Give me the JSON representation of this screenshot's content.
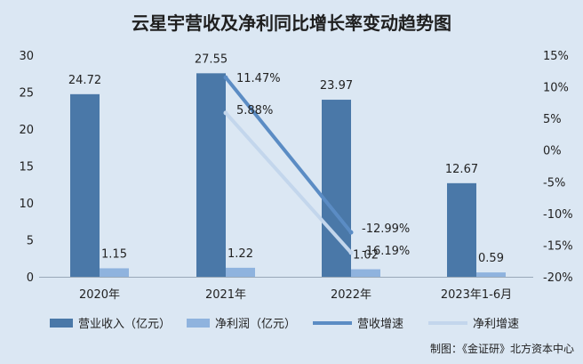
{
  "chart_data": {
    "type": "bar",
    "title": "云星宇营收及净利同比增长率变动趋势图",
    "categories": [
      "2020年",
      "2021年",
      "2022年",
      "2023年1-6月"
    ],
    "series": [
      {
        "name": "营业收入（亿元）",
        "kind": "bar",
        "axis": "left",
        "color": "#4a78a8",
        "values": [
          24.72,
          27.55,
          23.97,
          12.67
        ]
      },
      {
        "name": "净利润（亿元）",
        "kind": "bar",
        "axis": "left",
        "color": "#8fb3de",
        "values": [
          1.15,
          1.22,
          1.02,
          0.59
        ]
      },
      {
        "name": "营收增速",
        "kind": "line",
        "axis": "right",
        "color": "#5b8cc4",
        "values": [
          null,
          11.47,
          -12.99,
          null
        ]
      },
      {
        "name": "净利增速",
        "kind": "line",
        "axis": "right",
        "color": "#c3d6ec",
        "values": [
          null,
          5.88,
          -16.19,
          null
        ]
      }
    ],
    "data_labels": {
      "revenue": [
        "24.72",
        "27.55",
        "23.97",
        "12.67"
      ],
      "profit": [
        "1.15",
        "1.22",
        "1.02",
        "0.59"
      ],
      "revenue_growth": [
        "11.47%",
        "-12.99%"
      ],
      "profit_growth": [
        "5.88%",
        "-16.19%"
      ]
    },
    "y_left": {
      "ylim": [
        0,
        30
      ],
      "ticks": [
        "0",
        "5",
        "10",
        "15",
        "20",
        "25",
        "30"
      ]
    },
    "y_right": {
      "ylim": [
        -20,
        15
      ],
      "ticks": [
        "-20%",
        "-15%",
        "-10%",
        "-5%",
        "0%",
        "5%",
        "10%",
        "15%"
      ]
    },
    "grid": false,
    "legend_position": "bottom",
    "source": "制图：《金证研》北方资本中心"
  }
}
